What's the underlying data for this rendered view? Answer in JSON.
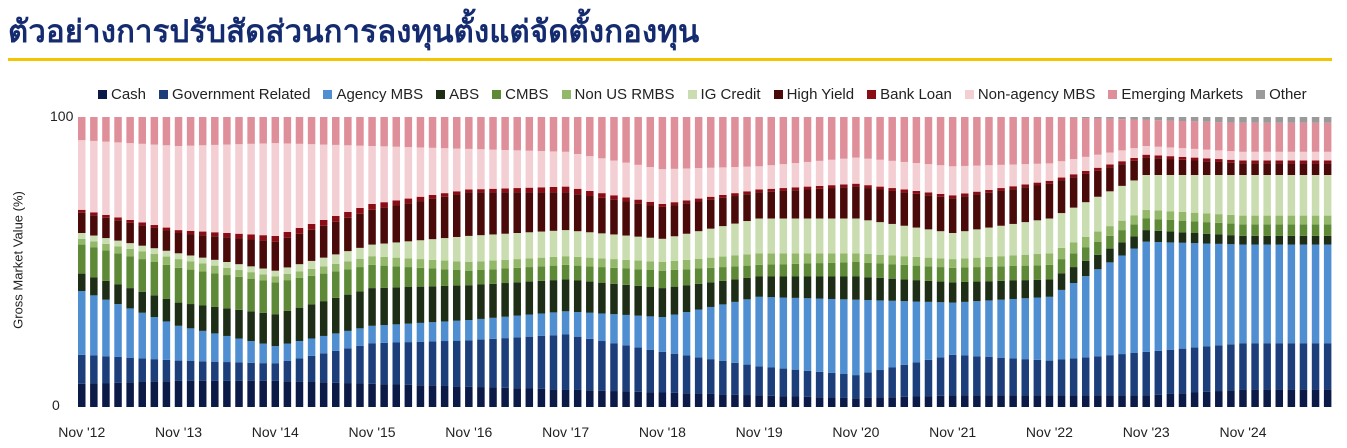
{
  "title": "ตัวอย่างการปรับสัดส่วนการลงทุนตั้งแต่จัดตั้งกองทุน",
  "colors": {
    "Cash": "#0b1a47",
    "Government Related": "#1c3f7c",
    "Agency MBS": "#4f8fd1",
    "ABS": "#1e2d16",
    "CMBS": "#5e8a37",
    "Non US RMBS": "#93b86a",
    "IG Credit": "#c9ddb0",
    "High Yield": "#4a0a0a",
    "Bank Loan": "#8a0d15",
    "Non-agency MBS": "#f3cfd4",
    "Emerging Markets": "#df8f99",
    "Other": "#9a9a9a"
  },
  "chart_data": {
    "type": "bar",
    "stacked": true,
    "title": "",
    "ylabel": "Gross Market Value (%)",
    "xlabel": "",
    "ylim": [
      0,
      100
    ],
    "yticks": [
      "0",
      "100"
    ],
    "x_tick_labels": [
      "Nov '12",
      "Nov '13",
      "Nov '14",
      "Nov '15",
      "Nov '16",
      "Nov '17",
      "Nov '18",
      "Nov '19",
      "Nov '20",
      "Nov '21",
      "Nov '22",
      "Nov '23",
      "Nov '24"
    ],
    "legend_position": "top",
    "legend": [
      "Cash",
      "Government Related",
      "Agency MBS",
      "ABS",
      "CMBS",
      "Non US RMBS",
      "IG Credit",
      "High Yield",
      "Bank Loan",
      "Non-agency MBS",
      "Emerging Markets",
      "Other"
    ],
    "dates": [
      "Nov '12",
      "Nov '13",
      "Nov '14",
      "Nov '15",
      "Nov '16",
      "Nov '17",
      "Nov '18",
      "Nov '19",
      "Nov '20",
      "Nov '21",
      "Nov '22",
      "Nov '23",
      "Nov '24"
    ],
    "series": [
      {
        "name": "Cash",
        "values": [
          8,
          9,
          9,
          8,
          7,
          6,
          5,
          4,
          3,
          4,
          4,
          4,
          6
        ]
      },
      {
        "name": "Government Related",
        "values": [
          10,
          7,
          6,
          14,
          16,
          19,
          14,
          10,
          8,
          14,
          12,
          15,
          16
        ]
      },
      {
        "name": "Agency MBS",
        "values": [
          22,
          12,
          6,
          6,
          7,
          8,
          12,
          24,
          26,
          18,
          22,
          38,
          34
        ]
      },
      {
        "name": "ABS",
        "values": [
          6,
          8,
          11,
          13,
          12,
          11,
          10,
          7,
          8,
          7,
          6,
          4,
          3
        ]
      },
      {
        "name": "CMBS",
        "values": [
          10,
          12,
          11,
          8,
          5,
          5,
          6,
          4,
          5,
          5,
          5,
          4,
          4
        ]
      },
      {
        "name": "Non US RMBS",
        "values": [
          2,
          3,
          2,
          3,
          3,
          3,
          3,
          4,
          3,
          3,
          4,
          3,
          3
        ]
      },
      {
        "name": "IG Credit",
        "values": [
          2,
          2,
          2,
          4,
          9,
          9,
          8,
          12,
          12,
          9,
          12,
          12,
          14
        ]
      },
      {
        "name": "High Yield",
        "values": [
          7,
          7,
          10,
          12,
          15,
          13,
          11,
          9,
          11,
          12,
          12,
          6,
          4
        ]
      },
      {
        "name": "Bank Loan",
        "values": [
          1,
          1,
          2,
          2,
          1,
          2,
          1,
          1,
          1,
          1,
          1,
          1,
          1
        ]
      },
      {
        "name": "Non-agency MBS",
        "values": [
          24,
          29,
          32,
          20,
          14,
          12,
          12,
          8,
          9,
          10,
          6,
          3,
          3
        ]
      },
      {
        "name": "Emerging Markets",
        "values": [
          8,
          10,
          9,
          10,
          11,
          12,
          18,
          17,
          14,
          17,
          16,
          9,
          10
        ]
      },
      {
        "name": "Other",
        "values": [
          0,
          0,
          0,
          0,
          0,
          0,
          0,
          0,
          0,
          0,
          0,
          1,
          2
        ]
      }
    ]
  }
}
